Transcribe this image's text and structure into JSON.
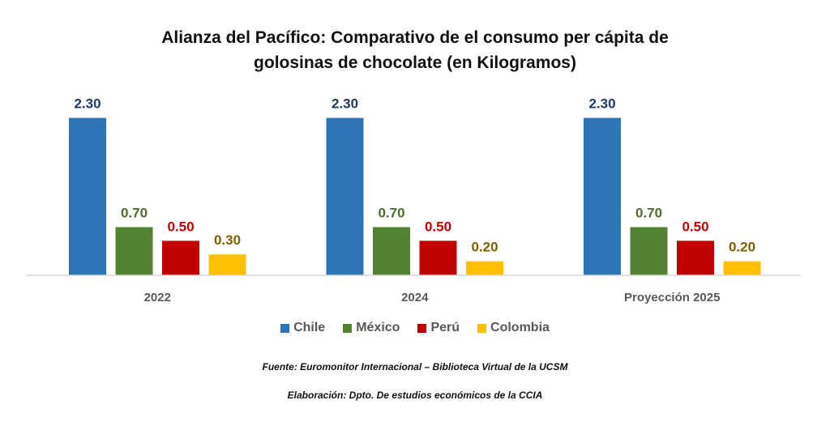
{
  "chart_data": {
    "type": "bar",
    "title_line1": "Alianza del Pacífico: Comparativo de el consumo per cápita de",
    "title_line2": "golosinas de chocolate (en Kilogramos)",
    "categories": [
      "2022",
      "2024",
      "Proyección 2025"
    ],
    "series": [
      {
        "name": "Chile",
        "color": "#2E75B6",
        "label_color": "#1F3864",
        "values": [
          2.3,
          2.3,
          2.3
        ]
      },
      {
        "name": "México",
        "color": "#548235",
        "label_color": "#4E6B30",
        "values": [
          0.7,
          0.7,
          0.7
        ]
      },
      {
        "name": "Perú",
        "color": "#C00000",
        "label_color": "#C00000",
        "values": [
          0.5,
          0.5,
          0.5
        ]
      },
      {
        "name": "Colombia",
        "color": "#FFC000",
        "label_color": "#7F6000",
        "values": [
          0.3,
          0.2,
          0.2
        ]
      }
    ],
    "value_format": "0.00",
    "xlabel": "",
    "ylabel": "",
    "ylim": [
      0,
      2.4
    ],
    "grid": false,
    "y_axis_visible": false,
    "legend_position": "bottom"
  },
  "footnotes": {
    "source": "Fuente: Euromonitor Internacional – Biblioteca Virtual de la UCSM",
    "elaboration": "Elaboración: Dpto. De estudios económicos de la CCIA"
  }
}
